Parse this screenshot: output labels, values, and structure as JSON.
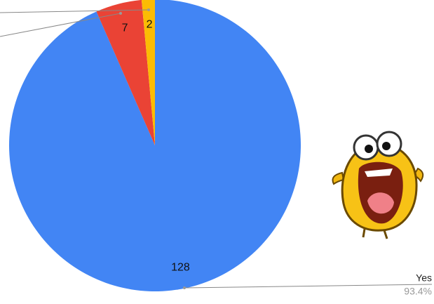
{
  "chart_data": {
    "type": "pie",
    "categories": [
      "Yes",
      null,
      null
    ],
    "values": [
      128,
      7,
      2
    ],
    "colors": [
      "#4285f4",
      "#ea4335",
      "#fbbc04"
    ],
    "percent_labels": [
      "93.4%",
      null,
      null
    ]
  }
}
